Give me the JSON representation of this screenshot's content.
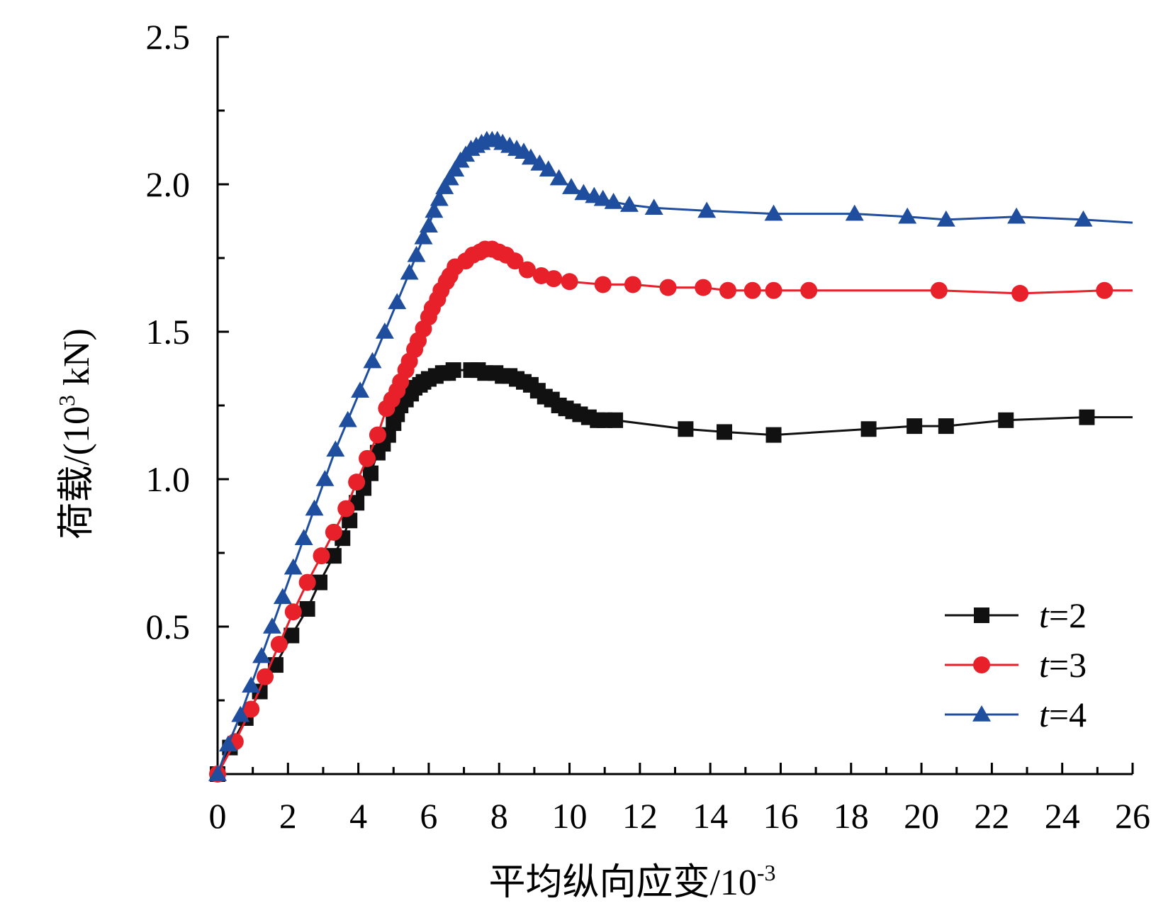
{
  "chart_data": {
    "type": "line",
    "title": "",
    "xlabel": "平均纵向应变/10",
    "xlabel_sup": "-3",
    "ylabel": "荷载/(10",
    "ylabel_sup": "3",
    "ylabel_tail": " kN)",
    "xlim": [
      0,
      26
    ],
    "ylim": [
      0,
      2.5
    ],
    "x_ticks": [
      0,
      2,
      4,
      6,
      8,
      10,
      12,
      14,
      16,
      18,
      20,
      22,
      24,
      26
    ],
    "x_tick_labels": [
      "0",
      "2",
      "4",
      "6",
      "8",
      "10",
      "12",
      "14",
      "16",
      "18",
      "20",
      "22",
      "24",
      "26"
    ],
    "y_ticks": [
      0.5,
      1.0,
      1.5,
      2.0,
      2.5
    ],
    "y_tick_labels": [
      "0.5",
      "1.0",
      "1.5",
      "2.0",
      "2.5"
    ],
    "grid": false,
    "legend_position": "bottom-right",
    "series": [
      {
        "name": "t=2",
        "legend_var": "t",
        "legend_rest": "=2",
        "color": "#111111",
        "marker": "square",
        "x": [
          0.0,
          0.35,
          0.8,
          1.2,
          1.65,
          2.1,
          2.55,
          2.9,
          3.3,
          3.55,
          3.75,
          3.95,
          4.15,
          4.35,
          4.55,
          4.7,
          4.85,
          5.0,
          5.1,
          5.2,
          5.35,
          5.5,
          5.6,
          5.75,
          5.85,
          6.0,
          6.2,
          6.4,
          6.55,
          6.7,
          7.2,
          7.4,
          7.6,
          7.9,
          8.1,
          8.3,
          8.5,
          8.7,
          8.9,
          9.1,
          9.3,
          9.5,
          9.7,
          9.9,
          10.1,
          10.3,
          10.55,
          10.8,
          11.0,
          11.3,
          13.3,
          14.4,
          15.8,
          18.5,
          19.8,
          20.7,
          22.4,
          24.7,
          26.0
        ],
        "y": [
          0.0,
          0.09,
          0.19,
          0.28,
          0.37,
          0.47,
          0.56,
          0.65,
          0.74,
          0.8,
          0.86,
          0.92,
          0.97,
          1.02,
          1.09,
          1.12,
          1.15,
          1.19,
          1.22,
          1.25,
          1.27,
          1.29,
          1.31,
          1.32,
          1.33,
          1.34,
          1.35,
          1.36,
          1.36,
          1.37,
          1.37,
          1.37,
          1.36,
          1.36,
          1.35,
          1.35,
          1.34,
          1.33,
          1.32,
          1.3,
          1.28,
          1.27,
          1.25,
          1.24,
          1.23,
          1.22,
          1.21,
          1.2,
          1.2,
          1.2,
          1.17,
          1.16,
          1.15,
          1.17,
          1.18,
          1.18,
          1.2,
          1.21,
          1.21
        ]
      },
      {
        "name": "t=3",
        "legend_var": "t",
        "legend_rest": "=3",
        "color": "#e8202a",
        "marker": "circle",
        "x": [
          0.0,
          0.5,
          0.95,
          1.35,
          1.75,
          2.15,
          2.55,
          2.95,
          3.3,
          3.65,
          3.95,
          4.25,
          4.55,
          4.8,
          4.95,
          5.1,
          5.2,
          5.35,
          5.45,
          5.6,
          5.7,
          5.85,
          6.0,
          6.1,
          6.25,
          6.35,
          6.5,
          6.6,
          6.75,
          7.05,
          7.25,
          7.45,
          7.6,
          7.8,
          8.0,
          8.2,
          8.45,
          8.8,
          9.2,
          9.55,
          10.0,
          10.95,
          11.8,
          12.8,
          13.8,
          14.5,
          15.2,
          15.8,
          16.8,
          20.5,
          22.8,
          25.2,
          26.0
        ],
        "y": [
          0.0,
          0.11,
          0.22,
          0.33,
          0.44,
          0.55,
          0.65,
          0.74,
          0.82,
          0.9,
          0.99,
          1.07,
          1.15,
          1.24,
          1.27,
          1.3,
          1.33,
          1.37,
          1.4,
          1.44,
          1.47,
          1.51,
          1.55,
          1.58,
          1.61,
          1.64,
          1.67,
          1.69,
          1.72,
          1.74,
          1.76,
          1.77,
          1.78,
          1.78,
          1.77,
          1.76,
          1.74,
          1.71,
          1.69,
          1.68,
          1.67,
          1.66,
          1.66,
          1.65,
          1.65,
          1.64,
          1.64,
          1.64,
          1.64,
          1.64,
          1.63,
          1.64,
          1.64
        ]
      },
      {
        "name": "t=4",
        "legend_var": "t",
        "legend_rest": "=4",
        "color": "#1f4e9f",
        "marker": "triangle",
        "x": [
          0.0,
          0.3,
          0.65,
          0.95,
          1.25,
          1.55,
          1.85,
          2.15,
          2.45,
          2.75,
          3.05,
          3.35,
          3.7,
          4.05,
          4.4,
          4.75,
          5.1,
          5.45,
          5.65,
          5.85,
          6.0,
          6.15,
          6.3,
          6.45,
          6.6,
          6.75,
          6.9,
          7.05,
          7.2,
          7.35,
          7.5,
          7.65,
          7.8,
          7.95,
          8.1,
          8.3,
          8.5,
          8.7,
          8.9,
          9.15,
          9.4,
          9.7,
          10.05,
          10.4,
          10.7,
          10.95,
          11.25,
          11.7,
          12.4,
          13.9,
          15.8,
          18.1,
          19.6,
          20.7,
          22.7,
          24.6,
          26.0
        ],
        "y": [
          0.0,
          0.1,
          0.2,
          0.3,
          0.4,
          0.5,
          0.6,
          0.7,
          0.8,
          0.9,
          1.0,
          1.1,
          1.2,
          1.3,
          1.4,
          1.5,
          1.6,
          1.7,
          1.76,
          1.82,
          1.86,
          1.91,
          1.95,
          1.99,
          2.02,
          2.05,
          2.08,
          2.1,
          2.12,
          2.13,
          2.14,
          2.15,
          2.15,
          2.15,
          2.14,
          2.13,
          2.12,
          2.11,
          2.09,
          2.07,
          2.05,
          2.02,
          1.99,
          1.97,
          1.96,
          1.95,
          1.94,
          1.93,
          1.92,
          1.91,
          1.9,
          1.9,
          1.89,
          1.88,
          1.89,
          1.88,
          1.87
        ]
      }
    ]
  }
}
